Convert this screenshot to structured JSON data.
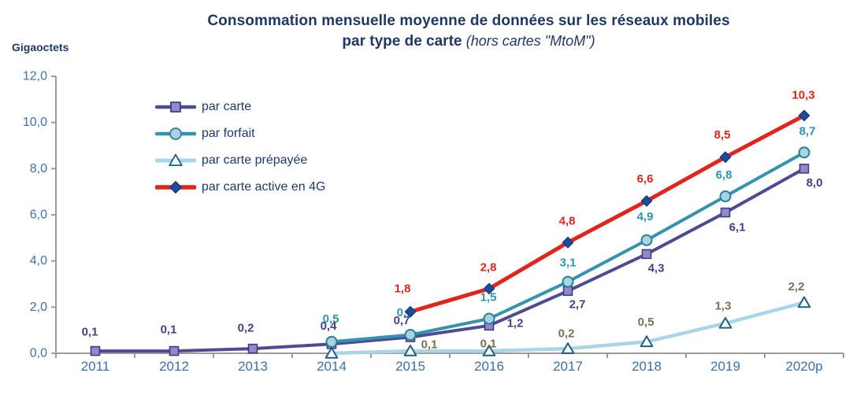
{
  "chart_data": {
    "type": "line",
    "title": "Consommation mensuelle moyenne de données sur les réseaux mobiles",
    "subtitle": "par type de carte",
    "subtitle_note": "(hors cartes \"MtoM\")",
    "ylabel": "Gigaoctets",
    "categories": [
      "2011",
      "2012",
      "2013",
      "2014",
      "2015",
      "2016",
      "2017",
      "2018",
      "2019",
      "2020p"
    ],
    "ylim": [
      0,
      12
    ],
    "ytick_step": 2,
    "ytick_labels": [
      "0,0",
      "2,0",
      "4,0",
      "6,0",
      "8,0",
      "10,0",
      "12,0"
    ],
    "grid": false,
    "legend_position": "upper-left-inside",
    "axis_color": "#9b9b9b",
    "tick_label_color": "#3e6fa8",
    "title_color": "#1f3864",
    "series": [
      {
        "name": "par carte",
        "marker": "square",
        "line_color": "#4f4a93",
        "line_width": 4,
        "marker_fill": "#8f8ac8",
        "marker_stroke": "#413c80",
        "label_color": "#453f85",
        "values": [
          0.1,
          0.1,
          0.2,
          0.4,
          0.7,
          1.2,
          2.7,
          4.3,
          6.1,
          8.0
        ],
        "labels": [
          "0,1",
          "0,1",
          "0,2",
          "0,4",
          "0,7",
          "1,2",
          "2,7",
          "4,3",
          "6,1",
          "8,0"
        ],
        "label_offsets": [
          [
            -7,
            -24
          ],
          [
            -7,
            -27
          ],
          [
            -9,
            -26
          ],
          [
            -4,
            -23
          ],
          [
            -11,
            -21
          ],
          [
            33,
            -3
          ],
          [
            12,
            17
          ],
          [
            12,
            18
          ],
          [
            15,
            19
          ],
          [
            13,
            18
          ]
        ]
      },
      {
        "name": "par forfait",
        "marker": "circle",
        "line_color": "#3593ae",
        "line_width": 4,
        "marker_fill": "#a9d3e2",
        "marker_stroke": "#2a8099",
        "label_color": "#2e93b2",
        "values": [
          null,
          null,
          null,
          0.5,
          0.8,
          1.5,
          3.1,
          4.9,
          6.8,
          8.7
        ],
        "labels": [
          null,
          null,
          null,
          "0,5",
          "0,8",
          "1,5",
          "3,1",
          "4,9",
          "6,8",
          "8,7"
        ],
        "label_offsets": [
          null,
          null,
          null,
          [
            -1,
            -29
          ],
          [
            -7,
            -28
          ],
          [
            -1,
            -27
          ],
          [
            0,
            -24
          ],
          [
            -2,
            -30
          ],
          [
            -2,
            -27
          ],
          [
            4,
            -27
          ]
        ]
      },
      {
        "name": "par carte prépayée",
        "marker": "triangle",
        "line_color": "#aad5e8",
        "line_width": 4.5,
        "marker_fill": "#f4fafd",
        "marker_stroke": "#20607c",
        "label_color": "#7b7052",
        "values": [
          null,
          null,
          null,
          0.0,
          0.1,
          0.1,
          0.2,
          0.5,
          1.3,
          2.2
        ],
        "labels": [
          null,
          null,
          null,
          null,
          "0,1",
          "0,1",
          "0,2",
          "0,5",
          "1,3",
          "2,2"
        ],
        "label_offsets": [
          null,
          null,
          null,
          null,
          [
            24,
            -8
          ],
          [
            -1,
            -9
          ],
          [
            -2,
            -19
          ],
          [
            -1,
            -25
          ],
          [
            -3,
            -22
          ],
          [
            -10,
            -20
          ]
        ]
      },
      {
        "name": "par carte active en 4G",
        "marker": "diamond",
        "line_color": "#e1251c",
        "line_width": 5,
        "marker_fill": "#1d4c9c",
        "marker_stroke": "#173e80",
        "label_color": "#e1251c",
        "values": [
          null,
          null,
          null,
          null,
          1.8,
          2.8,
          4.8,
          6.6,
          8.5,
          10.3
        ],
        "labels": [
          null,
          null,
          null,
          null,
          "1,8",
          "2,8",
          "4,8",
          "6,6",
          "8,5",
          "10,3"
        ],
        "label_offsets": [
          null,
          null,
          null,
          null,
          [
            -10,
            -29
          ],
          [
            -1,
            -27
          ],
          [
            -1,
            -27
          ],
          [
            -2,
            -28
          ],
          [
            -4,
            -28
          ],
          [
            -1,
            -26
          ]
        ]
      }
    ]
  }
}
